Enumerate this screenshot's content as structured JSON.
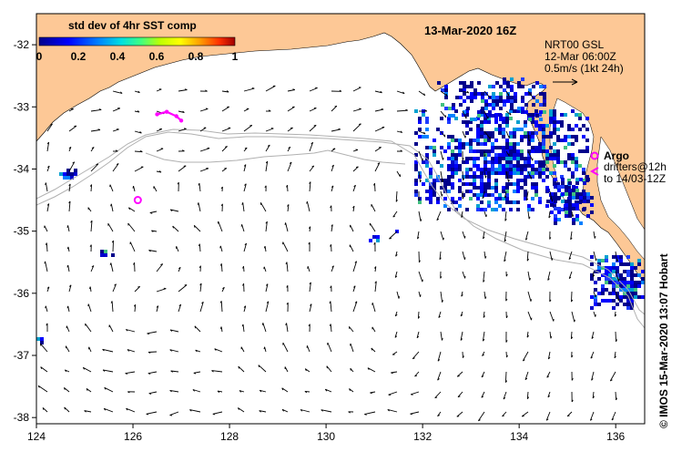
{
  "title": "13-Mar-2020 16Z",
  "colorbar": {
    "label": "std dev of 4hr SST comp",
    "ticks": [
      "0",
      "0.2",
      "0.4",
      "0.6",
      "0.8",
      "1"
    ],
    "colors": [
      "#00008b",
      "#0000ff",
      "#0080ff",
      "#00e0e0",
      "#40ff80",
      "#c0ff00",
      "#ffff00",
      "#ffa000",
      "#ff3000",
      "#a00000"
    ]
  },
  "velocity_note": {
    "line1": "NRT00 GSL",
    "line2": "12-Mar 06:00Z",
    "line3": "0.5m/s (1kt 24h)"
  },
  "legend_argo": {
    "label": "Argo",
    "drifters_line1": "drifters@12h",
    "drifters_line2": "to 14/03-12Z",
    "marker_color": "#ff00ff"
  },
  "axes": {
    "x_ticks": [
      "124",
      "126",
      "128",
      "130",
      "132",
      "134",
      "136"
    ],
    "y_ticks": [
      "-32",
      "-33",
      "-34",
      "-35",
      "-36",
      "-37",
      "-38"
    ],
    "lon_range": [
      124,
      136.6
    ],
    "lat_range": [
      -38.1,
      -31.5
    ]
  },
  "credit": "© IMOS 15-Mar-2020 13:07 Hobart",
  "colors": {
    "land": "#fdc896",
    "contour": "#b0b0b0",
    "sst_dark": "#00008b",
    "sst_blue": "#0000ff"
  },
  "argo_floats": [
    {
      "lon": 126.1,
      "lat": -34.5
    }
  ],
  "drifter_track": [
    {
      "lon": 126.5,
      "lat": -33.12
    },
    {
      "lon": 126.7,
      "lat": -33.08
    },
    {
      "lon": 126.9,
      "lat": -33.15
    },
    {
      "lon": 127.0,
      "lat": -33.22
    }
  ]
}
